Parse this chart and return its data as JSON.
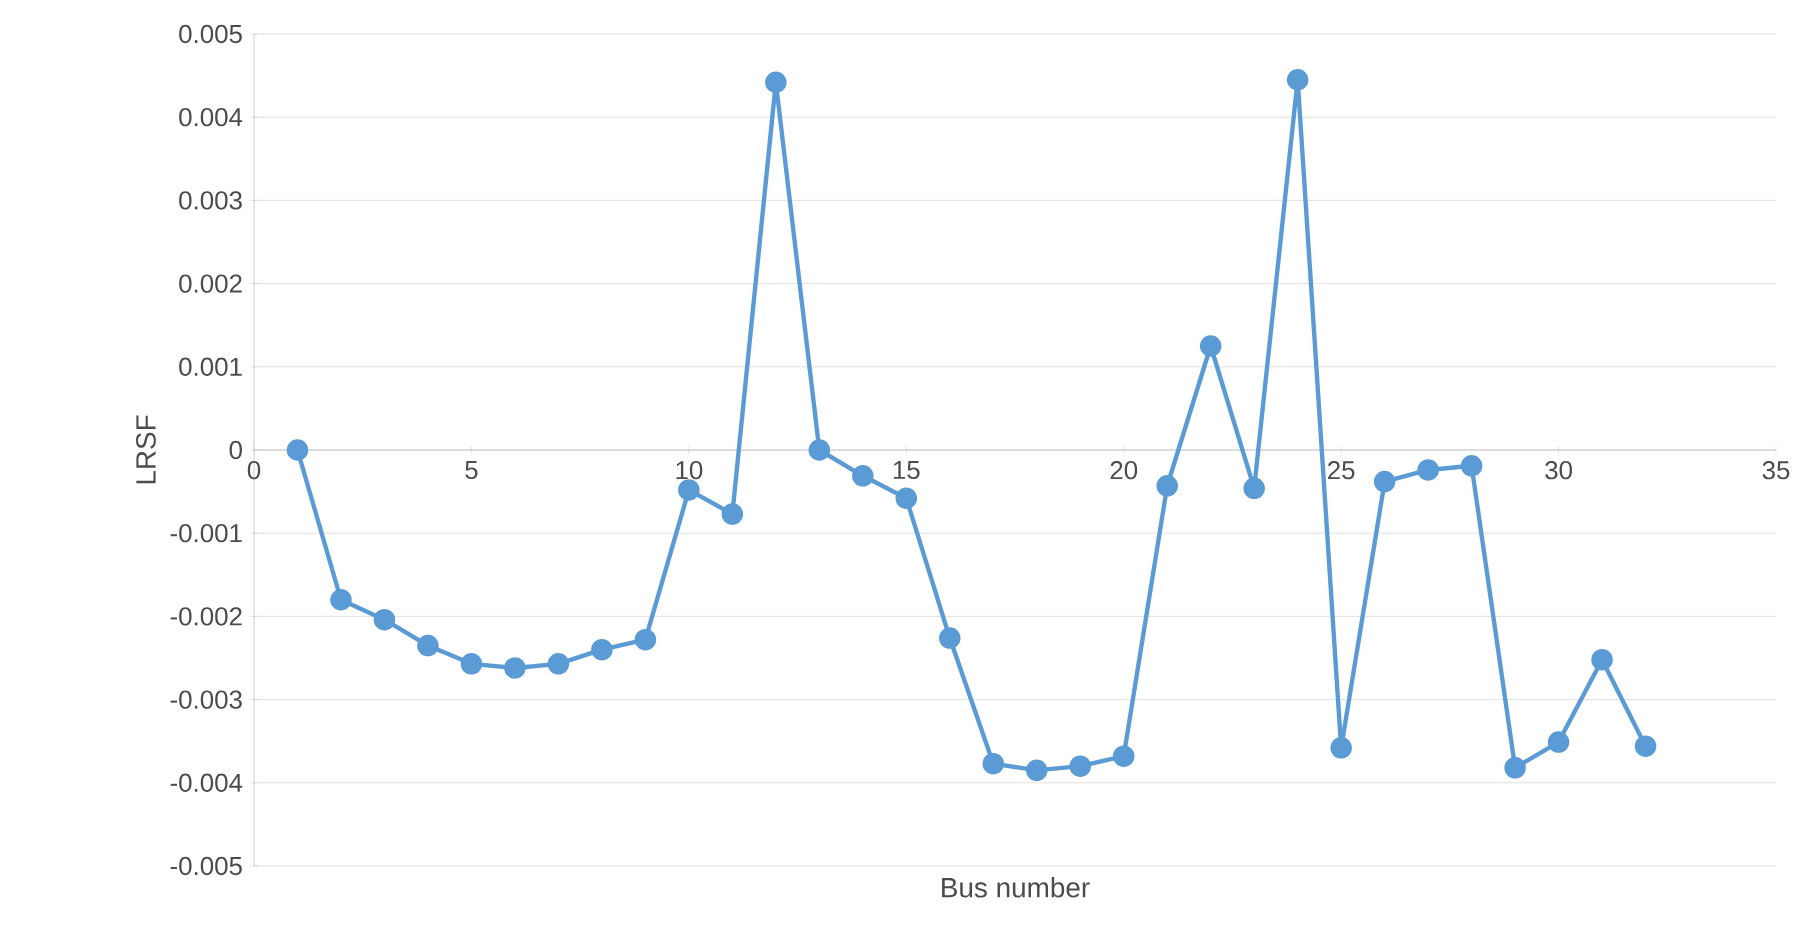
{
  "chart_data": {
    "type": "line",
    "xlabel": "Bus number",
    "ylabel": "LRSF",
    "x": [
      1,
      2,
      3,
      4,
      5,
      6,
      7,
      8,
      9,
      10,
      11,
      12,
      13,
      14,
      15,
      16,
      17,
      18,
      19,
      20,
      21,
      22,
      23,
      24,
      25,
      26,
      27,
      28,
      29,
      30,
      31,
      32
    ],
    "series": [
      {
        "color": "#5b9bd5",
        "values": [
          0,
          -0.0018,
          -0.00204,
          -0.00235,
          -0.00257,
          -0.00262,
          -0.00257,
          -0.0024,
          -0.00228,
          -0.00048,
          -0.00077,
          0.00442,
          0,
          -0.00031,
          -0.00058,
          -0.00226,
          -0.00377,
          -0.00385,
          -0.0038,
          -0.00368,
          -0.00043,
          0.00125,
          -0.00046,
          0.00445,
          -0.00358,
          -0.00038,
          -0.00024,
          -0.00019,
          -0.00382,
          -0.00351,
          -0.00252,
          -0.00356
        ]
      }
    ],
    "xlim": [
      0,
      35
    ],
    "xticks": [
      0,
      5,
      10,
      15,
      20,
      25,
      30,
      35
    ],
    "ylim": [
      -0.005,
      0.005
    ],
    "yticks": [
      -0.005,
      -0.004,
      -0.003,
      -0.002,
      -0.001,
      0,
      0.001,
      0.002,
      0.003,
      0.004,
      0.005
    ],
    "grid": "y",
    "marker": "circle",
    "line_style": "solid"
  }
}
